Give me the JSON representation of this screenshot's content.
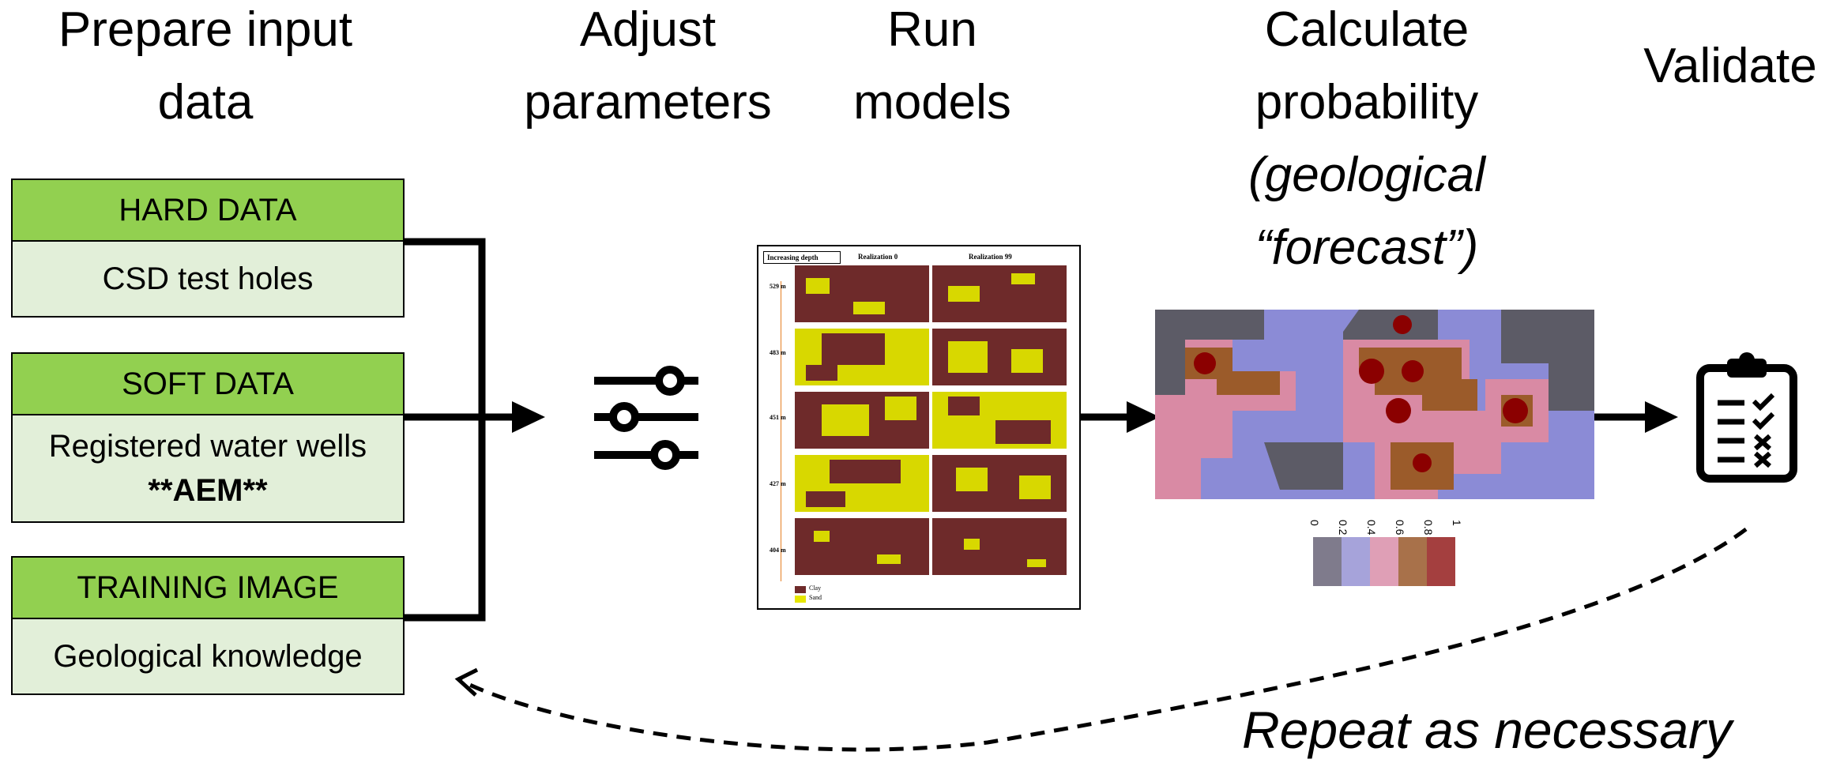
{
  "steps": {
    "prepare": [
      "Prepare input",
      "data"
    ],
    "adjust": [
      "Adjust",
      "parameters"
    ],
    "run": [
      "Run",
      "models"
    ],
    "calculate": [
      "Calculate",
      "probability"
    ],
    "calculate_note": [
      "(geological",
      "“forecast”)"
    ],
    "validate": "Validate"
  },
  "inputs": [
    {
      "header": "HARD DATA",
      "lines": [
        "CSD test holes"
      ]
    },
    {
      "header": "SOFT DATA",
      "lines": [
        "Registered water wells"
      ],
      "bold_line": "**AEM**"
    },
    {
      "header": "TRAINING IMAGE",
      "lines": [
        "Geological knowledge"
      ]
    }
  ],
  "realizations": {
    "header_label": "Increasing depth",
    "columns": [
      "Realization 0",
      "Realization 99"
    ],
    "depths": [
      "529 m",
      "483 m",
      "451 m",
      "427 m",
      "404 m"
    ],
    "legend": [
      {
        "label": "Clay",
        "color": "#6e2a2a"
      },
      {
        "label": "Sand",
        "color": "#e6e600"
      }
    ]
  },
  "probability_scale": {
    "ticks": [
      "0",
      "0.2",
      "0.4",
      "0.6",
      "0.8",
      "1"
    ],
    "colors": [
      "#7f7b8c",
      "#a6a3da",
      "#df9fb6",
      "#a8714a",
      "#a43f3f"
    ]
  },
  "map_colors": {
    "low": "#5c5b66",
    "mid_low": "#8b8bd6",
    "mid": "#d98aa4",
    "high": "#9b5b2a",
    "max": "#8b0000"
  },
  "icons": {
    "sliders": "sliders-icon",
    "clipboard": "clipboard-checklist-icon"
  },
  "loop_label": "Repeat as necessary",
  "colors": {
    "header_green": "#92d050",
    "body_green": "#e2efd9"
  }
}
